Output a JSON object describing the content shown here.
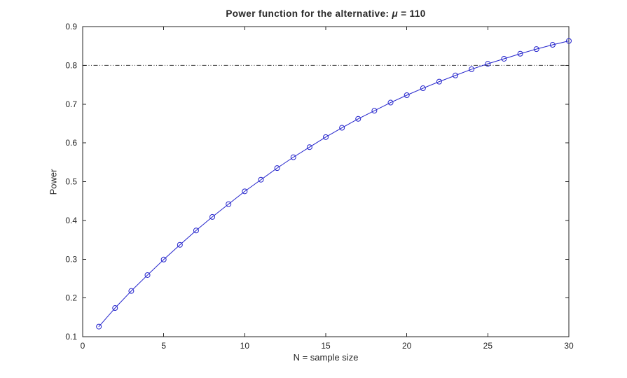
{
  "figure": {
    "title_prefix": "Power function for the alternative: ",
    "title_mu": "μ",
    "title_suffix": " = 110"
  },
  "chart_data": {
    "type": "line",
    "title": "Power function for the alternative: μ = 110",
    "xlabel": "N = sample size",
    "ylabel": "Power",
    "xlim": [
      0,
      30
    ],
    "ylim": [
      0.1,
      0.9
    ],
    "xticks": [
      0,
      5,
      10,
      15,
      20,
      25,
      30
    ],
    "yticks": [
      0.1,
      0.2,
      0.3,
      0.4,
      0.5,
      0.6,
      0.7,
      0.8,
      0.9
    ],
    "grid": false,
    "legend": null,
    "series": [
      {
        "name": "power-curve",
        "marker": "circle",
        "line_style": "solid",
        "color": "#2323cc",
        "x": [
          1,
          2,
          3,
          4,
          5,
          6,
          7,
          8,
          9,
          10,
          11,
          12,
          13,
          14,
          15,
          16,
          17,
          18,
          19,
          20,
          21,
          22,
          23,
          24,
          25,
          26,
          27,
          28,
          29,
          30
        ],
        "y": [
          0.126,
          0.174,
          0.218,
          0.259,
          0.299,
          0.337,
          0.374,
          0.409,
          0.442,
          0.475,
          0.505,
          0.535,
          0.563,
          0.589,
          0.615,
          0.639,
          0.662,
          0.683,
          0.704,
          0.723,
          0.741,
          0.758,
          0.774,
          0.79,
          0.804,
          0.817,
          0.83,
          0.842,
          0.853,
          0.863
        ]
      }
    ],
    "reference_line": {
      "y": 0.8,
      "style": "dash-dot",
      "color": "#3a3a3a"
    }
  },
  "colors": {
    "background": "#ffffff",
    "axis": "#262626",
    "tick_text": "#262626"
  }
}
